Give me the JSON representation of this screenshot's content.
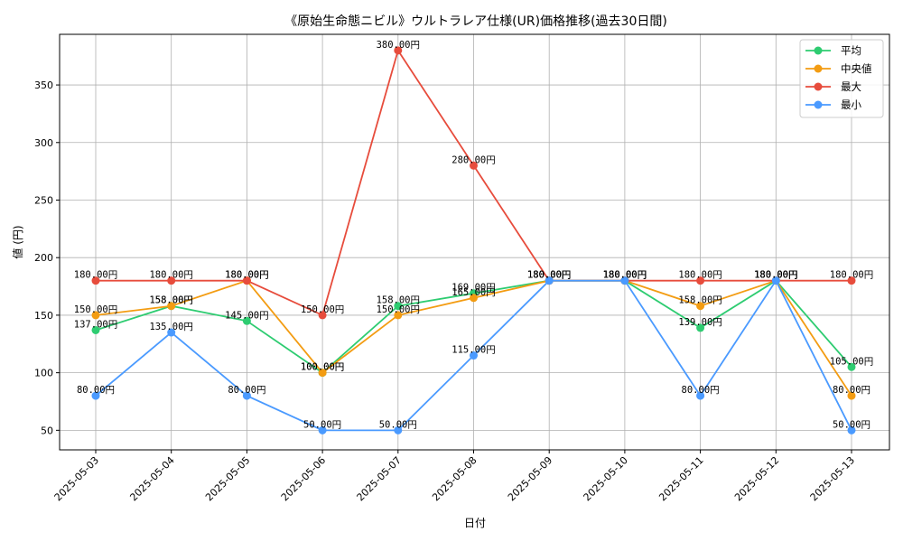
{
  "chart_data": {
    "type": "line",
    "title": "《原始生命態ニビル》ウルトラレア仕様(UR)価格推移(過去30日間)",
    "xlabel": "日付",
    "ylabel": "値 (円)",
    "categories": [
      "2025-05-03",
      "2025-05-04",
      "2025-05-05",
      "2025-05-06",
      "2025-05-07",
      "2025-05-08",
      "2025-05-09",
      "2025-05-10",
      "2025-05-11",
      "2025-05-12",
      "2025-05-13"
    ],
    "ylim": [
      33,
      394
    ],
    "yticks": [
      50,
      100,
      150,
      200,
      250,
      300,
      350
    ],
    "grid": true,
    "legend_position": "top-right",
    "series": [
      {
        "name": "平均",
        "color": "#2ecc71",
        "values": [
          137,
          158,
          145,
          100,
          158,
          169,
          180,
          180,
          139,
          180,
          105
        ],
        "labels": [
          "137.00円",
          "158.00円",
          "145.00円",
          "100.00円",
          "158.00円",
          "169.00円",
          "180.00円",
          "180.00円",
          "139.00円",
          "180.00円",
          "105.00円"
        ]
      },
      {
        "name": "中央値",
        "color": "#f39c12",
        "values": [
          150,
          158,
          180,
          100,
          150,
          165,
          180,
          180,
          158,
          180,
          80
        ],
        "labels": [
          "150.00円",
          "158.00円",
          "180.00円",
          "100.00円",
          "150.00円",
          "165.00円",
          "180.00円",
          "180.00円",
          "158.00円",
          "180.00円",
          "80.00円"
        ]
      },
      {
        "name": "最大",
        "color": "#e74c3c",
        "values": [
          180,
          180,
          180,
          150,
          380,
          280,
          180,
          180,
          180,
          180,
          180
        ],
        "labels": [
          "180.00円",
          "180.00円",
          "180.00円",
          "150.00円",
          "380.00円",
          "280.00円",
          "180.00円",
          "180.00円",
          "180.00円",
          "180.00円",
          "180.00円"
        ]
      },
      {
        "name": "最小",
        "color": "#4a9aff",
        "values": [
          80,
          135,
          80,
          50,
          50,
          115,
          180,
          180,
          80,
          180,
          50
        ],
        "labels": [
          "80.00円",
          "135.00円",
          "80.00円",
          "50.00円",
          "50.00円",
          "115.00円",
          "180.00円",
          "180.00円",
          "80.00円",
          "180.00円",
          "50.00円"
        ]
      }
    ]
  }
}
